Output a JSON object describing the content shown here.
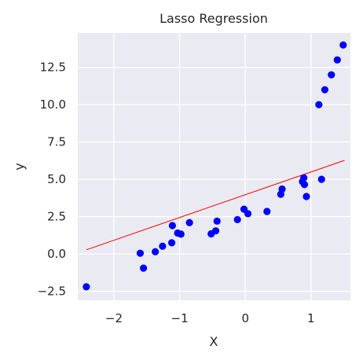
{
  "chart_data": {
    "type": "scatter",
    "title": "Lasso Regression",
    "xlabel": "X",
    "ylabel": "y",
    "xlim": [
      -2.55,
      1.6
    ],
    "ylim": [
      -3.1,
      14.8
    ],
    "x_ticks": [
      -2,
      -1,
      0,
      1
    ],
    "x_tick_labels": [
      "−2",
      "−1",
      "0",
      "1"
    ],
    "y_ticks": [
      -2.5,
      0.0,
      2.5,
      5.0,
      7.5,
      10.0,
      12.5
    ],
    "y_tick_labels": [
      "−2.5",
      "0.0",
      "2.5",
      "5.0",
      "7.5",
      "10.0",
      "12.5"
    ],
    "grid": true,
    "background_color": "#eaeaf2",
    "grid_color": "#ffffff",
    "point_color": "#0000ff",
    "line_color": "#ff0000",
    "points": [
      {
        "x": -2.42,
        "y": -2.2
      },
      {
        "x": -1.6,
        "y": 0.05
      },
      {
        "x": -1.55,
        "y": -0.95
      },
      {
        "x": -1.37,
        "y": 0.15
      },
      {
        "x": -1.26,
        "y": 0.52
      },
      {
        "x": -1.12,
        "y": 0.75
      },
      {
        "x": -1.11,
        "y": 1.9
      },
      {
        "x": -1.03,
        "y": 1.4
      },
      {
        "x": -0.98,
        "y": 1.33
      },
      {
        "x": -0.85,
        "y": 2.1
      },
      {
        "x": -0.52,
        "y": 1.35
      },
      {
        "x": -0.45,
        "y": 1.55
      },
      {
        "x": -0.43,
        "y": 2.2
      },
      {
        "x": -0.12,
        "y": 2.3
      },
      {
        "x": -0.02,
        "y": 3.0
      },
      {
        "x": 0.04,
        "y": 2.7
      },
      {
        "x": 0.33,
        "y": 2.85
      },
      {
        "x": 0.54,
        "y": 4.0
      },
      {
        "x": 0.56,
        "y": 4.35
      },
      {
        "x": 0.87,
        "y": 4.85
      },
      {
        "x": 0.89,
        "y": 5.1
      },
      {
        "x": 0.9,
        "y": 4.65
      },
      {
        "x": 0.93,
        "y": 3.85
      },
      {
        "x": 1.12,
        "y": 10.0
      },
      {
        "x": 1.16,
        "y": 5.0
      },
      {
        "x": 1.21,
        "y": 11.0
      },
      {
        "x": 1.31,
        "y": 12.0
      },
      {
        "x": 1.4,
        "y": 13.0
      },
      {
        "x": 1.49,
        "y": 14.0
      }
    ],
    "fit_line": {
      "x": [
        -2.42,
        1.51
      ],
      "y": [
        0.28,
        6.27
      ]
    }
  }
}
